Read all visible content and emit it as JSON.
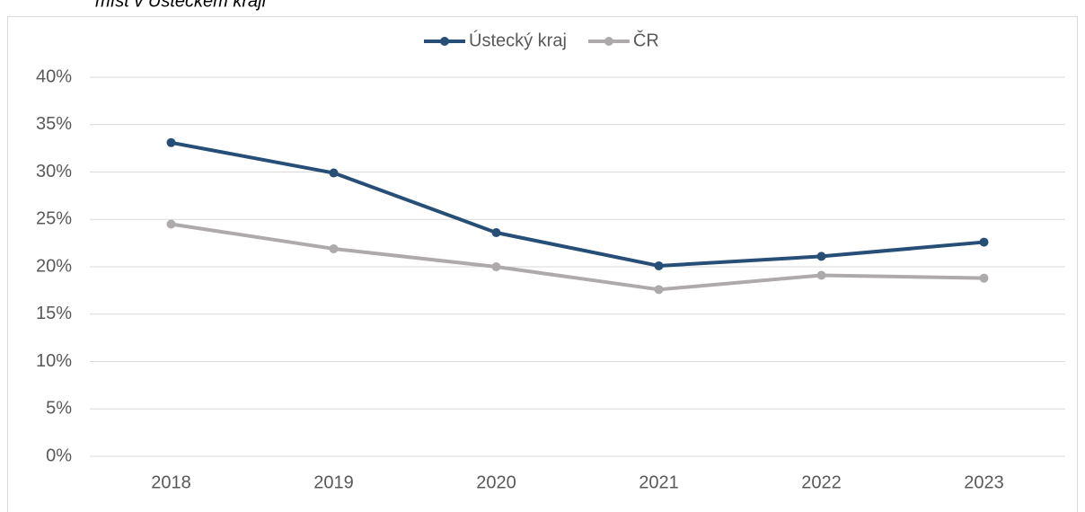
{
  "chart_data": {
    "type": "line",
    "title": "míst v Ústeckém kraji",
    "categories": [
      "2018",
      "2019",
      "2020",
      "2021",
      "2022",
      "2023"
    ],
    "series": [
      {
        "name": "Ústecký kraj",
        "color": "#264e76",
        "values": [
          33.1,
          29.9,
          23.6,
          20.1,
          21.1,
          22.6
        ]
      },
      {
        "name": "ČR",
        "color": "#aeaaab",
        "values": [
          24.5,
          21.9,
          20.0,
          17.6,
          19.1,
          18.8
        ]
      }
    ],
    "ylim": [
      0,
      40
    ],
    "yticks": [
      {
        "value": 0,
        "label": "0%"
      },
      {
        "value": 5,
        "label": "5%"
      },
      {
        "value": 10,
        "label": "10%"
      },
      {
        "value": 15,
        "label": "15%"
      },
      {
        "value": 20,
        "label": "20%"
      },
      {
        "value": 25,
        "label": "25%"
      },
      {
        "value": 30,
        "label": "30%"
      },
      {
        "value": 35,
        "label": "35%"
      },
      {
        "value": 40,
        "label": "40%"
      }
    ],
    "grid": true,
    "legend": "top"
  }
}
